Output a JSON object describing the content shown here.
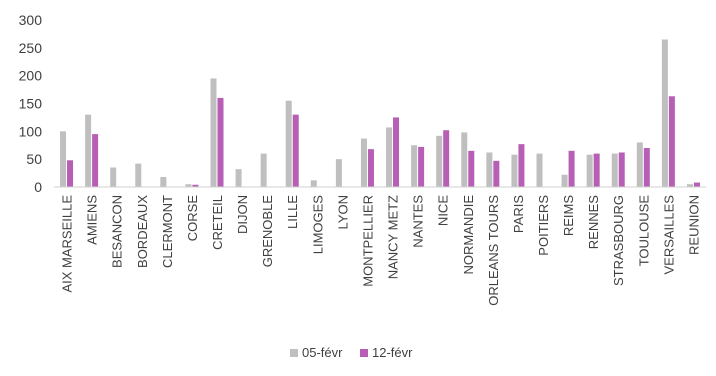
{
  "colors": {
    "series_05": "#bfbfbf",
    "series_12": "#b65fb4",
    "axis": "#d0d0d0",
    "text": "#404040"
  },
  "chart_data": {
    "type": "bar",
    "title": "",
    "xlabel": "",
    "ylabel": "",
    "ylim": [
      0,
      300
    ],
    "yticks": [
      0,
      50,
      100,
      150,
      200,
      250,
      300
    ],
    "grid": false,
    "legend_position": "bottom",
    "categories": [
      "AIX MARSEILLE",
      "AMIENS",
      "BESANCON",
      "BORDEAUX",
      "CLERMONT",
      "CORSE",
      "CRETEIL",
      "DIJON",
      "GRENOBLE",
      "LILLE",
      "LIMOGES",
      "LYON",
      "MONTPELLIER",
      "NANCY METZ",
      "NANTES",
      "NICE",
      "NORMANDIE",
      "ORLEANS TOURS",
      "PARIS",
      "POITIERS",
      "REIMS",
      "RENNES",
      "STRASBOURG",
      "TOULOUSE",
      "VERSAILLES",
      "REUNION"
    ],
    "series": [
      {
        "name": "05-févr",
        "values": [
          100,
          130,
          35,
          42,
          18,
          5,
          195,
          32,
          60,
          155,
          12,
          50,
          87,
          107,
          75,
          92,
          98,
          62,
          58,
          60,
          22,
          58,
          60,
          80,
          265,
          5
        ]
      },
      {
        "name": "12-févr",
        "values": [
          48,
          95,
          0,
          0,
          0,
          4,
          160,
          0,
          0,
          130,
          0,
          0,
          68,
          125,
          72,
          102,
          65,
          47,
          77,
          0,
          65,
          60,
          62,
          70,
          163,
          8
        ]
      }
    ]
  }
}
